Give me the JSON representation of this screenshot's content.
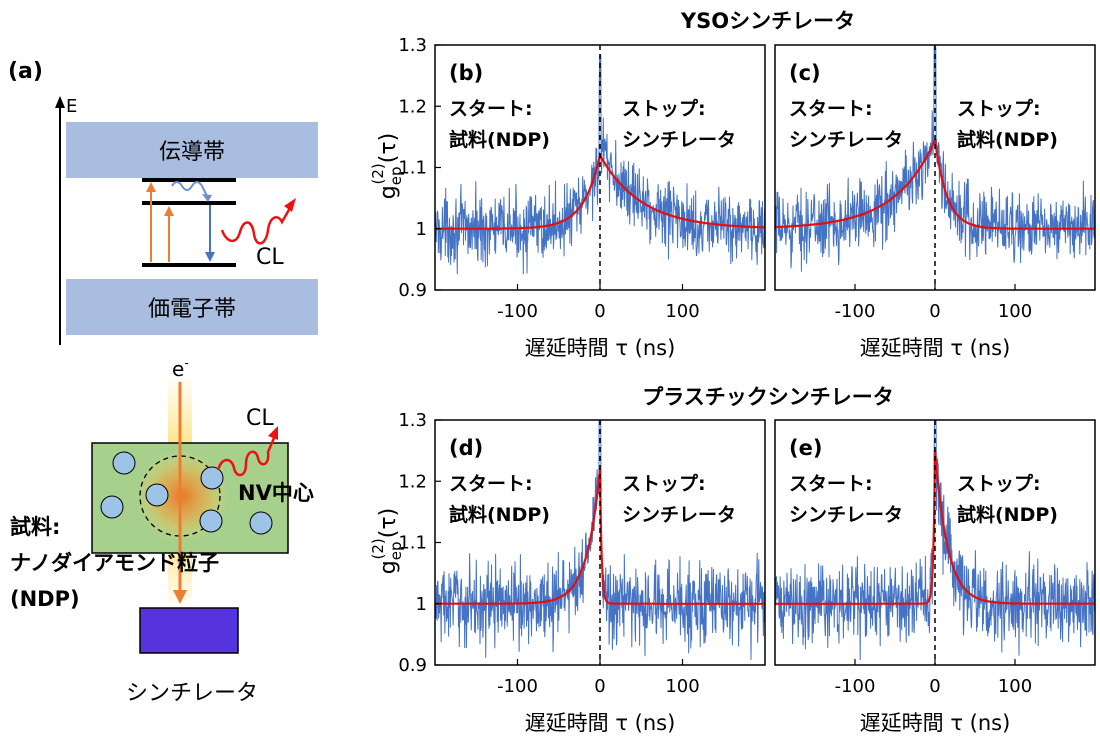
{
  "panel_a": {
    "label": "(a)",
    "energy_axis": "E",
    "conduction_band": "伝導帯",
    "valence_band": "価電子帯",
    "cl": "CL",
    "electron": "e",
    "electron_sup": "-",
    "cl2": "CL",
    "nv_center": "NV中心",
    "sample_line1": "試料:",
    "sample_line2": "ナノダイアモンド粒子",
    "sample_line3": "(NDP)",
    "scintillator": "シンチレータ",
    "colors": {
      "band": "#a9bde0",
      "electron_beam": "#f08a24",
      "cl": "#ee1111",
      "sample_box": "#a8d08d",
      "nv": "#9dc3e6",
      "scintillator": "#5533dd",
      "nv_label": "#4472c4",
      "sample_label": "#70ad47"
    }
  },
  "group_titles": {
    "top": "YSOシンチレータ",
    "bottom": "プラスチックシンチレータ"
  },
  "axis_labels": {
    "y_main": "g",
    "y_sup": "(2)",
    "y_sub": "ep",
    "y_arg": "(τ)",
    "x": "遅延時間 τ (ns)"
  },
  "chart_data": [
    {
      "type": "line",
      "panel": "(b)",
      "group": "YSOシンチレータ",
      "annotation_left": [
        "スタート:",
        "試料(NDP)"
      ],
      "annotation_right": [
        "ストップ:",
        "シンチレータ"
      ],
      "xlabel": "遅延時間 τ (ns)",
      "ylabel": "g_ep^(2)(τ)",
      "xlim": [
        -200,
        200
      ],
      "ylim": [
        0.9,
        1.3
      ],
      "xticks": [
        -100,
        0,
        100
      ],
      "yticks": [
        0.9,
        1,
        1.1,
        1.2,
        1.3
      ],
      "baseline": 1.0,
      "peak_tau": 0,
      "peak_value": 1.12,
      "rise_tau_ns": 20,
      "decay_tau_ns": 50,
      "noise_amplitude": 0.035,
      "series": [
        {
          "name": "measured",
          "color": "#4472c4"
        },
        {
          "name": "fit",
          "color": "#e01010"
        }
      ]
    },
    {
      "type": "line",
      "panel": "(c)",
      "group": "YSOシンチレータ",
      "annotation_left": [
        "スタート:",
        "シンチレータ"
      ],
      "annotation_right": [
        "ストップ:",
        "試料(NDP)"
      ],
      "xlabel": "遅延時間 τ (ns)",
      "ylabel": "",
      "xlim": [
        -200,
        200
      ],
      "ylim": [
        0.9,
        1.3
      ],
      "xticks": [
        -100,
        0,
        100
      ],
      "yticks": [],
      "baseline": 1.0,
      "peak_tau": 0,
      "peak_value": 1.145,
      "rise_tau_ns": 50,
      "decay_tau_ns": 15,
      "noise_amplitude": 0.035,
      "series": [
        {
          "name": "measured",
          "color": "#4472c4"
        },
        {
          "name": "fit",
          "color": "#e01010"
        }
      ]
    },
    {
      "type": "line",
      "panel": "(d)",
      "group": "プラスチックシンチレータ",
      "annotation_left": [
        "スタート:",
        "試料(NDP)"
      ],
      "annotation_right": [
        "ストップ:",
        "シンチレータ"
      ],
      "xlabel": "遅延時間 τ (ns)",
      "ylabel": "g_ep^(2)(τ)",
      "xlim": [
        -200,
        200
      ],
      "ylim": [
        0.9,
        1.3
      ],
      "xticks": [
        -100,
        0,
        100
      ],
      "yticks": [
        0.9,
        1,
        1.1,
        1.2,
        1.3
      ],
      "baseline": 1.0,
      "peak_tau": 0,
      "peak_value": 1.22,
      "rise_tau_ns": 16,
      "decay_tau_ns": 2,
      "noise_amplitude": 0.04,
      "series": [
        {
          "name": "measured",
          "color": "#4472c4"
        },
        {
          "name": "fit",
          "color": "#e01010"
        }
      ]
    },
    {
      "type": "line",
      "panel": "(e)",
      "group": "プラスチックシンチレータ",
      "annotation_left": [
        "スタート:",
        "シンチレータ"
      ],
      "annotation_right": [
        "ストップ:",
        "試料(NDP)"
      ],
      "xlabel": "遅延時間 τ (ns)",
      "ylabel": "",
      "xlim": [
        -200,
        200
      ],
      "ylim": [
        0.9,
        1.3
      ],
      "xticks": [
        -100,
        0,
        100
      ],
      "yticks": [],
      "baseline": 1.0,
      "peak_tau": 0,
      "peak_value": 1.25,
      "rise_tau_ns": 2,
      "decay_tau_ns": 16,
      "noise_amplitude": 0.04,
      "series": [
        {
          "name": "measured",
          "color": "#4472c4"
        },
        {
          "name": "fit",
          "color": "#e01010"
        }
      ]
    }
  ]
}
